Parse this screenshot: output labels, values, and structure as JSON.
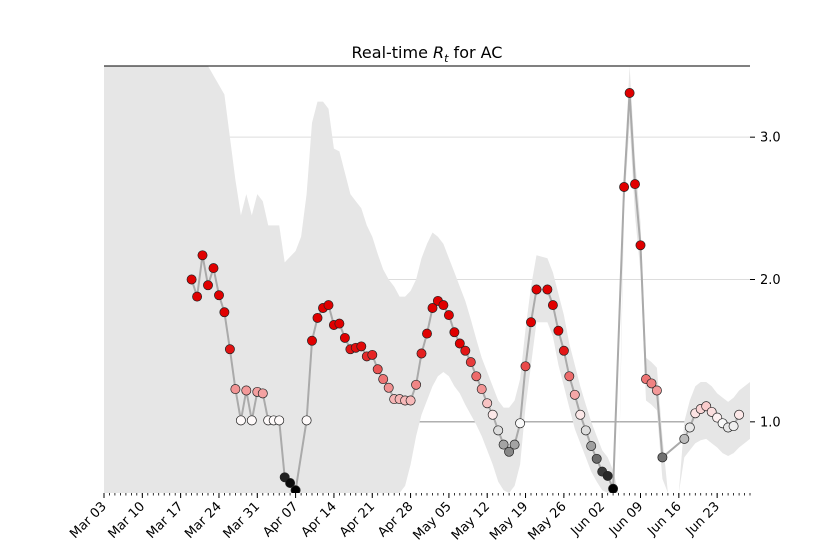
{
  "chart_data": {
    "type": "scatter",
    "title": "Real-time R_t for AC",
    "title_parts": {
      "prefix": "Real-time ",
      "var": "R",
      "sub": "t",
      "suffix": " for AC"
    },
    "xlabel": "",
    "ylabel": "",
    "x_ticks": [
      "Mar 03",
      "Mar 10",
      "Mar 17",
      "Mar 24",
      "Mar 31",
      "Apr 07",
      "Apr 14",
      "Apr 21",
      "Apr 28",
      "May 05",
      "May 12",
      "May 19",
      "May 26",
      "Jun 02",
      "Jun 09",
      "Jun 16",
      "Jun 23"
    ],
    "x_range": [
      "2020-03-03",
      "2020-06-29"
    ],
    "y_ticks": [
      "1.0",
      "2.0",
      "3.0"
    ],
    "ylim": [
      0.5,
      3.5
    ],
    "reference_line": 1.0,
    "grid": "horizontal",
    "y_axis_side": "right",
    "colors": {
      "band": "#e6e6e6",
      "line": "#aaaaaa",
      "high": "#e00000",
      "neutral": "#ffffff",
      "low": "#000000",
      "refline": "#999999",
      "grid": "#dddddd"
    },
    "series": [
      {
        "values": [
          [
            "2020-03-19",
            2.0
          ],
          [
            "2020-03-20",
            1.88
          ],
          [
            "2020-03-21",
            2.17
          ],
          [
            "2020-03-22",
            1.96
          ],
          [
            "2020-03-23",
            2.08
          ],
          [
            "2020-03-24",
            1.89
          ],
          [
            "2020-03-25",
            1.77
          ],
          [
            "2020-03-26",
            1.51
          ],
          [
            "2020-03-27",
            1.23
          ],
          [
            "2020-03-28",
            1.01
          ],
          [
            "2020-03-29",
            1.22
          ],
          [
            "2020-03-30",
            1.01
          ],
          [
            "2020-03-31",
            1.21
          ],
          [
            "2020-04-01",
            1.2
          ],
          [
            "2020-04-02",
            1.01
          ],
          [
            "2020-04-03",
            1.01
          ],
          [
            "2020-04-04",
            1.01
          ],
          [
            "2020-04-05",
            0.61
          ],
          [
            "2020-04-06",
            0.57
          ],
          [
            "2020-04-07",
            0.52
          ],
          [
            "2020-04-09",
            1.01
          ],
          [
            "2020-04-10",
            1.57
          ],
          [
            "2020-04-11",
            1.73
          ],
          [
            "2020-04-12",
            1.8
          ],
          [
            "2020-04-13",
            1.82
          ],
          [
            "2020-04-14",
            1.68
          ],
          [
            "2020-04-15",
            1.69
          ],
          [
            "2020-04-16",
            1.59
          ],
          [
            "2020-04-17",
            1.51
          ],
          [
            "2020-04-18",
            1.52
          ],
          [
            "2020-04-19",
            1.53
          ],
          [
            "2020-04-20",
            1.46
          ],
          [
            "2020-04-21",
            1.47
          ],
          [
            "2020-04-22",
            1.37
          ],
          [
            "2020-04-23",
            1.3
          ],
          [
            "2020-04-24",
            1.24
          ],
          [
            "2020-04-25",
            1.16
          ],
          [
            "2020-04-26",
            1.16
          ],
          [
            "2020-04-27",
            1.15
          ],
          [
            "2020-04-28",
            1.15
          ],
          [
            "2020-04-29",
            1.26
          ],
          [
            "2020-04-30",
            1.48
          ],
          [
            "2020-05-01",
            1.62
          ],
          [
            "2020-05-02",
            1.8
          ],
          [
            "2020-05-03",
            1.85
          ],
          [
            "2020-05-04",
            1.82
          ],
          [
            "2020-05-05",
            1.75
          ],
          [
            "2020-05-06",
            1.63
          ],
          [
            "2020-05-07",
            1.55
          ],
          [
            "2020-05-08",
            1.5
          ],
          [
            "2020-05-09",
            1.42
          ],
          [
            "2020-05-10",
            1.32
          ],
          [
            "2020-05-11",
            1.23
          ],
          [
            "2020-05-12",
            1.13
          ],
          [
            "2020-05-13",
            1.05
          ],
          [
            "2020-05-14",
            0.94
          ],
          [
            "2020-05-15",
            0.84
          ],
          [
            "2020-05-16",
            0.79
          ],
          [
            "2020-05-17",
            0.84
          ],
          [
            "2020-05-18",
            0.99
          ],
          [
            "2020-05-19",
            1.39
          ],
          [
            "2020-05-20",
            1.7
          ],
          [
            "2020-05-21",
            1.93
          ],
          [
            "2020-05-23",
            1.93
          ],
          [
            "2020-05-24",
            1.82
          ],
          [
            "2020-05-25",
            1.64
          ],
          [
            "2020-05-26",
            1.5
          ],
          [
            "2020-05-27",
            1.32
          ],
          [
            "2020-05-28",
            1.19
          ],
          [
            "2020-05-29",
            1.05
          ],
          [
            "2020-05-30",
            0.94
          ],
          [
            "2020-05-31",
            0.83
          ],
          [
            "2020-06-01",
            0.74
          ],
          [
            "2020-06-02",
            0.65
          ],
          [
            "2020-06-03",
            0.62
          ],
          [
            "2020-06-04",
            0.53
          ],
          [
            "2020-06-06",
            2.65
          ],
          [
            "2020-06-07",
            3.31
          ],
          [
            "2020-06-08",
            2.67
          ],
          [
            "2020-06-09",
            2.24
          ],
          [
            "2020-06-10",
            1.3
          ],
          [
            "2020-06-11",
            1.27
          ],
          [
            "2020-06-12",
            1.22
          ],
          [
            "2020-06-13",
            0.75
          ],
          [
            "2020-06-17",
            0.88
          ],
          [
            "2020-06-18",
            0.96
          ],
          [
            "2020-06-19",
            1.06
          ],
          [
            "2020-06-20",
            1.09
          ],
          [
            "2020-06-21",
            1.11
          ],
          [
            "2020-06-22",
            1.07
          ],
          [
            "2020-06-23",
            1.03
          ],
          [
            "2020-06-24",
            0.99
          ],
          [
            "2020-06-25",
            0.96
          ],
          [
            "2020-06-26",
            0.97
          ],
          [
            "2020-06-27",
            1.05
          ]
        ]
      }
    ],
    "band": [
      [
        "2020-03-03",
        3.5,
        0.5
      ],
      [
        "2020-03-22",
        3.5,
        0.5
      ],
      [
        "2020-03-25",
        3.3,
        0.5
      ],
      [
        "2020-03-27",
        2.7,
        0.5
      ],
      [
        "2020-03-28",
        2.45,
        0.5
      ],
      [
        "2020-03-29",
        2.6,
        0.5
      ],
      [
        "2020-03-30",
        2.45,
        0.5
      ],
      [
        "2020-03-31",
        2.6,
        0.5
      ],
      [
        "2020-04-01",
        2.55,
        0.5
      ],
      [
        "2020-04-02",
        2.38,
        0.5
      ],
      [
        "2020-04-04",
        2.38,
        0.5
      ],
      [
        "2020-04-05",
        2.12,
        0.5
      ],
      [
        "2020-04-07",
        2.2,
        0.5
      ],
      [
        "2020-04-08",
        2.3,
        0.5
      ],
      [
        "2020-04-09",
        2.6,
        0.5
      ],
      [
        "2020-04-10",
        3.1,
        0.5
      ],
      [
        "2020-04-11",
        3.25,
        0.5
      ],
      [
        "2020-04-12",
        3.25,
        0.5
      ],
      [
        "2020-04-13",
        3.2,
        0.5
      ],
      [
        "2020-04-14",
        2.92,
        0.5
      ],
      [
        "2020-04-15",
        2.9,
        0.5
      ],
      [
        "2020-04-16",
        2.75,
        0.5
      ],
      [
        "2020-04-17",
        2.6,
        0.5
      ],
      [
        "2020-04-18",
        2.55,
        0.5
      ],
      [
        "2020-04-19",
        2.5,
        0.5
      ],
      [
        "2020-04-20",
        2.38,
        0.5
      ],
      [
        "2020-04-21",
        2.3,
        0.5
      ],
      [
        "2020-04-22",
        2.18,
        0.5
      ],
      [
        "2020-04-23",
        2.07,
        0.5
      ],
      [
        "2020-04-24",
        2.0,
        0.5
      ],
      [
        "2020-04-25",
        1.95,
        0.5
      ],
      [
        "2020-04-26",
        1.88,
        0.5
      ],
      [
        "2020-04-27",
        1.88,
        0.55
      ],
      [
        "2020-04-28",
        1.92,
        0.7
      ],
      [
        "2020-04-29",
        2.0,
        0.9
      ],
      [
        "2020-04-30",
        2.15,
        1.05
      ],
      [
        "2020-05-01",
        2.25,
        1.15
      ],
      [
        "2020-05-02",
        2.33,
        1.25
      ],
      [
        "2020-05-03",
        2.3,
        1.32
      ],
      [
        "2020-05-04",
        2.25,
        1.35
      ],
      [
        "2020-05-05",
        2.15,
        1.32
      ],
      [
        "2020-05-06",
        2.05,
        1.25
      ],
      [
        "2020-05-07",
        1.95,
        1.2
      ],
      [
        "2020-05-08",
        1.85,
        1.12
      ],
      [
        "2020-05-09",
        1.72,
        1.05
      ],
      [
        "2020-05-10",
        1.58,
        0.98
      ],
      [
        "2020-05-11",
        1.45,
        0.9
      ],
      [
        "2020-05-12",
        1.35,
        0.8
      ],
      [
        "2020-05-13",
        1.25,
        0.7
      ],
      [
        "2020-05-14",
        1.15,
        0.58
      ],
      [
        "2020-05-15",
        1.1,
        0.52
      ],
      [
        "2020-05-16",
        1.1,
        0.5
      ],
      [
        "2020-05-17",
        1.15,
        0.55
      ],
      [
        "2020-05-18",
        1.3,
        0.7
      ],
      [
        "2020-05-19",
        1.65,
        1.1
      ],
      [
        "2020-05-20",
        1.95,
        1.4
      ],
      [
        "2020-05-21",
        2.17,
        1.7
      ],
      [
        "2020-05-23",
        2.15,
        1.7
      ],
      [
        "2020-05-24",
        2.05,
        1.6
      ],
      [
        "2020-05-25",
        1.9,
        1.4
      ],
      [
        "2020-05-26",
        1.75,
        1.25
      ],
      [
        "2020-05-27",
        1.55,
        1.1
      ],
      [
        "2020-05-28",
        1.4,
        0.95
      ],
      [
        "2020-05-29",
        1.25,
        0.85
      ],
      [
        "2020-05-30",
        1.12,
        0.75
      ],
      [
        "2020-05-31",
        1.0,
        0.65
      ],
      [
        "2020-06-01",
        0.9,
        0.58
      ],
      [
        "2020-06-02",
        0.8,
        0.52
      ],
      [
        "2020-06-03",
        0.75,
        0.5
      ],
      [
        "2020-06-04",
        0.66,
        0.5
      ],
      [
        "2020-06-05",
        0.5,
        0.5
      ],
      [
        "2020-06-06",
        2.75,
        2.5
      ],
      [
        "2020-06-07",
        3.5,
        3.1
      ],
      [
        "2020-06-08",
        2.85,
        2.45
      ],
      [
        "2020-06-09",
        2.4,
        2.05
      ],
      [
        "2020-06-10",
        1.45,
        1.15
      ],
      [
        "2020-06-11",
        1.42,
        1.12
      ],
      [
        "2020-06-12",
        1.38,
        1.08
      ],
      [
        "2020-06-13",
        0.9,
        0.6
      ],
      [
        "2020-06-14",
        0.5,
        0.5
      ],
      [
        "2020-06-16",
        0.5,
        0.5
      ],
      [
        "2020-06-17",
        1.0,
        0.75
      ],
      [
        "2020-06-18",
        1.15,
        0.8
      ],
      [
        "2020-06-19",
        1.25,
        0.85
      ],
      [
        "2020-06-20",
        1.28,
        0.87
      ],
      [
        "2020-06-21",
        1.28,
        0.88
      ],
      [
        "2020-06-22",
        1.25,
        0.85
      ],
      [
        "2020-06-23",
        1.2,
        0.82
      ],
      [
        "2020-06-24",
        1.17,
        0.78
      ],
      [
        "2020-06-25",
        1.14,
        0.76
      ],
      [
        "2020-06-26",
        1.17,
        0.78
      ],
      [
        "2020-06-27",
        1.22,
        0.82
      ],
      [
        "2020-06-29",
        1.28,
        0.88
      ]
    ]
  }
}
